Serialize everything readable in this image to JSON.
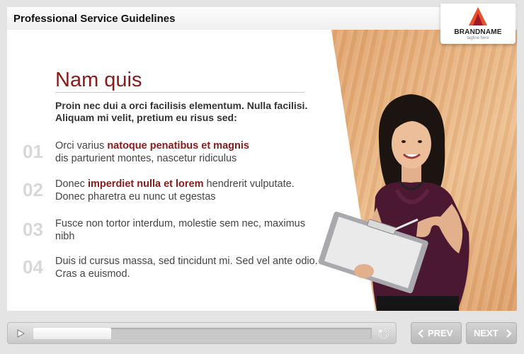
{
  "header": {
    "title": "Professional Service Guidelines"
  },
  "brand": {
    "name": "BRANDNAME",
    "tagline": "tagline here",
    "color": "#e8502a"
  },
  "slide": {
    "heading": "Nam quis",
    "intro": "Proin nec dui a orci facilisis elementum. Nulla facilisi. Aliquam mi velit, pretium eu risus sed:",
    "items": [
      {
        "num": "01",
        "pre": "Orci varius ",
        "bold": "natoque penatibus et magnis",
        "post": " dis parturient montes, nascetur ridiculus"
      },
      {
        "num": "02",
        "pre": "Donec ",
        "bold": "imperdiet nulla et lorem",
        "post": " hendrerit vulputate. Donec pharetra eu nunc ut egestas"
      },
      {
        "num": "03",
        "pre": "Fusce non tortor interdum, molestie sem nec, maximus nibh",
        "bold": "",
        "post": ""
      },
      {
        "num": "04",
        "pre": "Duis id cursus massa, sed tincidunt mi. Sed vel ante odio. Cras a euismod.",
        "bold": "",
        "post": ""
      }
    ]
  },
  "player": {
    "progress": 0.23
  },
  "nav": {
    "prev_label": "PREV",
    "next_label": "NEXT"
  },
  "colors": {
    "accent": "#8b1a1a",
    "number": "#d8d8d8"
  }
}
